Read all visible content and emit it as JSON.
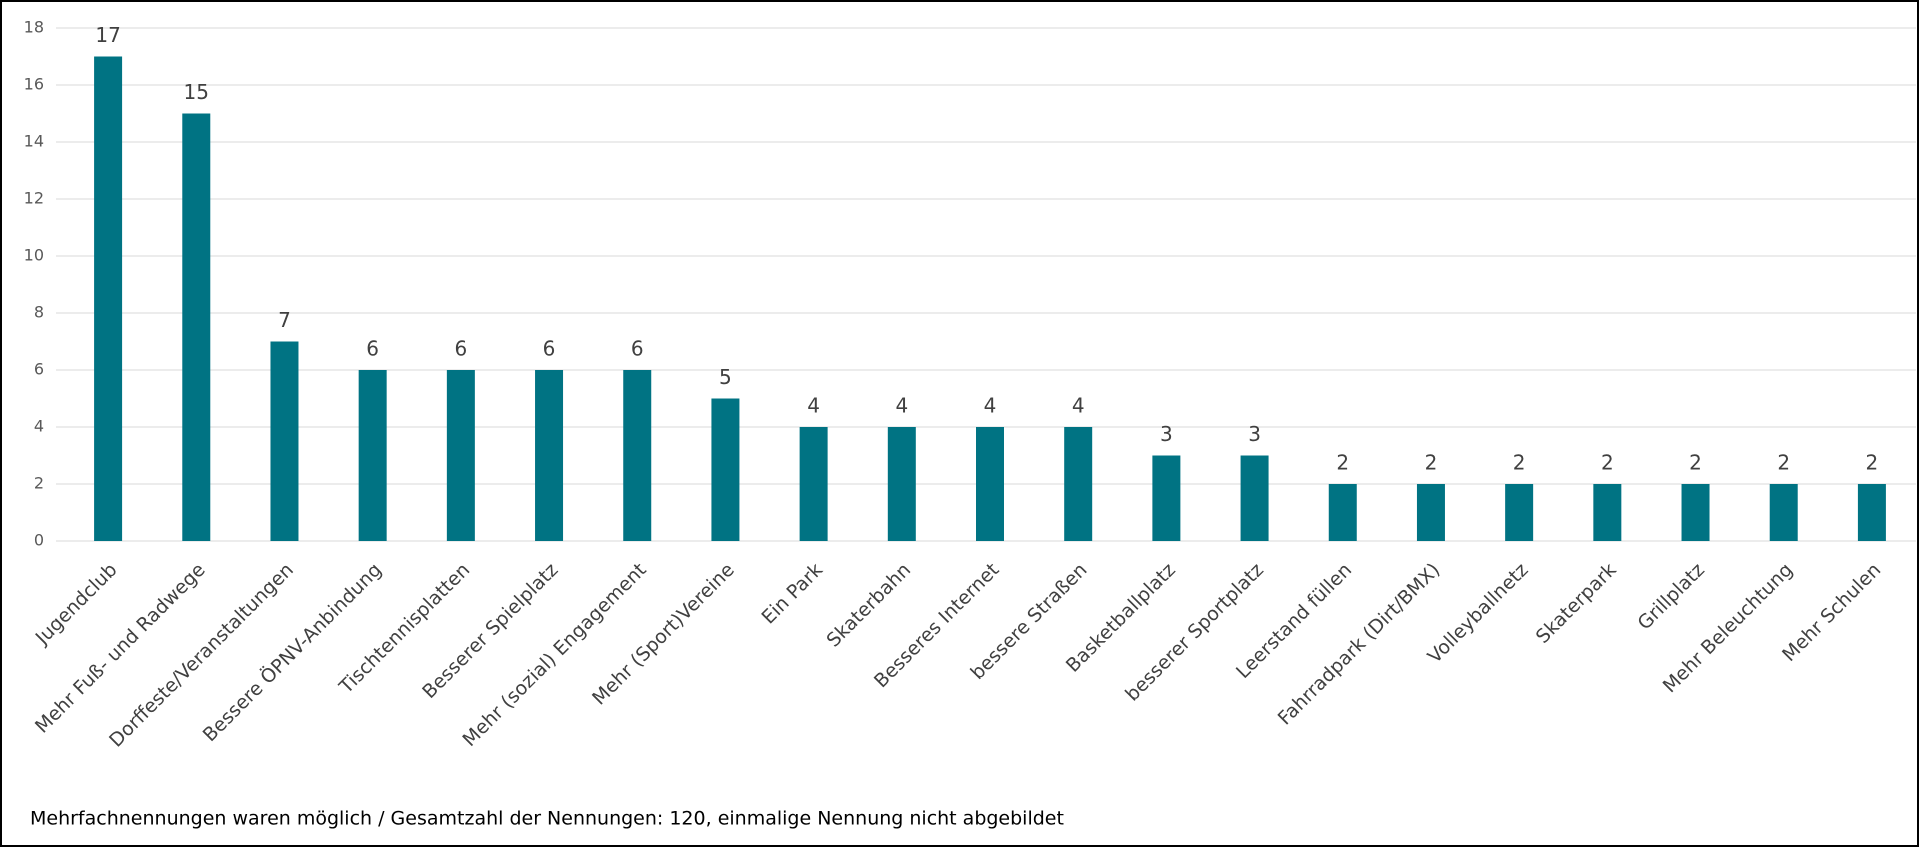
{
  "chart_data": {
    "type": "bar",
    "categories": [
      "Jugendclub",
      "Mehr Fuß- und Radwege",
      "Dorffeste/Veranstaltungen",
      "Bessere ÖPNV-Anbindung",
      "Tischtennisplatten",
      "Besserer Spielplatz",
      "Mehr (sozial) Engagement",
      "Mehr (Sport)Vereine",
      "Ein Park",
      "Skaterbahn",
      "Besseres Internet",
      "bessere Straßen",
      "Basketballplatz",
      "besserer Sportplatz",
      "Leerstand füllen",
      "Fahrradpark (Dirt/BMX)",
      "Volleyballnetz",
      "Skaterpark",
      "Grillplatz",
      "Mehr Beleuchtung",
      "Mehr Schulen"
    ],
    "values": [
      17,
      15,
      7,
      6,
      6,
      6,
      6,
      5,
      4,
      4,
      4,
      4,
      3,
      3,
      2,
      2,
      2,
      2,
      2,
      2,
      2
    ],
    "color": "#007383",
    "ylim": [
      0,
      18
    ],
    "yticks": [
      0,
      2,
      4,
      6,
      8,
      10,
      12,
      14,
      16,
      18
    ],
    "grid": true,
    "annotation": "Mehrfachnennungen waren möglich / Gesamtzahl der Nennungen: 120, einmalige Nennung nicht abgebildet"
  }
}
